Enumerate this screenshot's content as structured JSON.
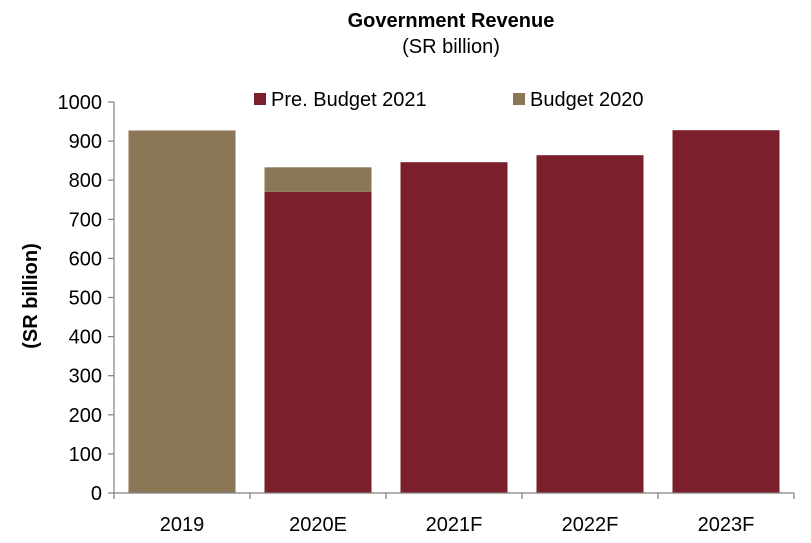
{
  "colors": {
    "pre_budget_2021": "#7a1f2b",
    "budget_2020": "#8b7656",
    "axis": "#808080"
  },
  "chart_data": {
    "type": "bar",
    "stacked": true,
    "title": "Government Revenue",
    "subtitle": "(SR billion)",
    "xlabel": "",
    "ylabel": "(SR billion)",
    "ylim": [
      0,
      1000
    ],
    "yticks": [
      "0",
      "100",
      "200",
      "300",
      "400",
      "500",
      "600",
      "700",
      "800",
      "900",
      "1000"
    ],
    "categories": [
      "2019",
      "2020E",
      "2021F",
      "2022F",
      "2023F"
    ],
    "legend_position": "top",
    "grid": false,
    "series": [
      {
        "name": "Pre. Budget 2021",
        "color": "#7a1f2b",
        "values": [
          0,
          770,
          846,
          864,
          928
        ]
      },
      {
        "name": "Budget 2020",
        "color": "#8b7656",
        "values": [
          927,
          63,
          0,
          0,
          0
        ]
      }
    ]
  }
}
